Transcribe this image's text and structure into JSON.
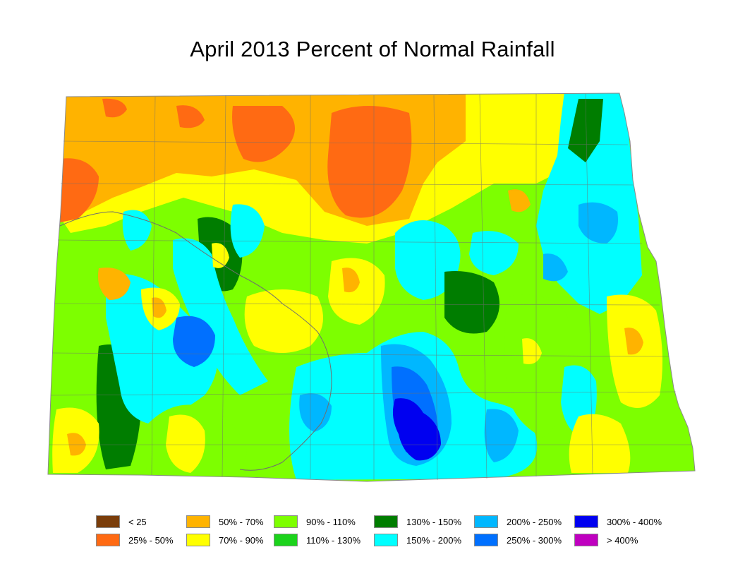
{
  "title": "April 2013 Percent of Normal Rainfall",
  "legend": [
    {
      "label": "< 25",
      "color": "#7a3d0a"
    },
    {
      "label": "25% - 50%",
      "color": "#ff6a13"
    },
    {
      "label": "50% - 70%",
      "color": "#ffb300"
    },
    {
      "label": "70% - 90%",
      "color": "#ffff00"
    },
    {
      "label": "90% - 110%",
      "color": "#7dff00"
    },
    {
      "label": "110% - 130%",
      "color": "#1cd31c"
    },
    {
      "label": "130% - 150%",
      "color": "#007d00"
    },
    {
      "label": "150% - 200%",
      "color": "#00ffff"
    },
    {
      "label": "200% - 250%",
      "color": "#00b7ff"
    },
    {
      "label": "250% - 300%",
      "color": "#0070ff"
    },
    {
      "label": "300% - 400%",
      "color": "#0000f0"
    },
    {
      "label": "> 400%",
      "color": "#bf00bf"
    }
  ]
}
